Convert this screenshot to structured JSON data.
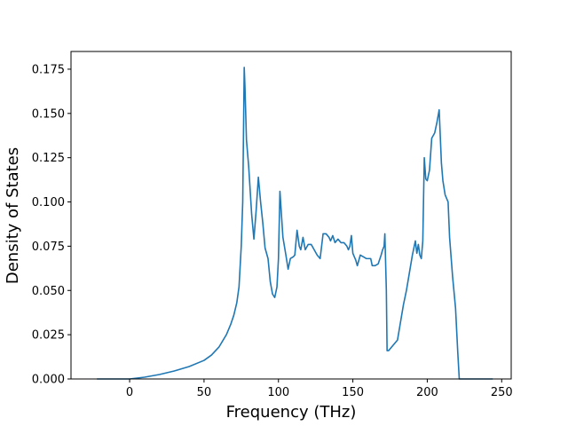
{
  "chart_data": {
    "type": "line",
    "title": "",
    "xlabel": "Frequency (THz)",
    "ylabel": "Density of States",
    "xlim": [
      -39.4,
      256.4
    ],
    "ylim": [
      0.0,
      0.185
    ],
    "grid": false,
    "legend": "none",
    "x_ticks": [
      0,
      50,
      100,
      150,
      200,
      250
    ],
    "x_tick_labels": [
      "0",
      "50",
      "100",
      "150",
      "200",
      "250"
    ],
    "y_ticks": [
      0.0,
      0.025,
      0.05,
      0.075,
      0.1,
      0.125,
      0.15,
      0.175
    ],
    "y_tick_labels": [
      "0.000",
      "0.025",
      "0.050",
      "0.075",
      "0.100",
      "0.125",
      "0.150",
      "0.175"
    ],
    "colors": {
      "line": "#1f77b4",
      "axes": "#000000",
      "background": "#ffffff"
    },
    "series": [
      {
        "x": [
          -22.0,
          0.0,
          10.0,
          20.0,
          30.0,
          40.0,
          50.0,
          55.0,
          60.0,
          65.0,
          68.0,
          70.0,
          72.0,
          73.5,
          75.0,
          76.0,
          77.0,
          77.5,
          78.5,
          80.0,
          82.0,
          83.5,
          85.0,
          86.5,
          88.0,
          89.5,
          91.0,
          93.0,
          94.5,
          96.0,
          97.5,
          99.0,
          100.0,
          101.0,
          103.0,
          105.0,
          106.5,
          108.0,
          110.0,
          111.0,
          112.5,
          114.0,
          115.0,
          116.5,
          118.0,
          120.0,
          122.0,
          124.0,
          126.0,
          128.0,
          130.0,
          132.0,
          134.0,
          135.0,
          136.5,
          138.0,
          140.0,
          142.0,
          144.0,
          146.0,
          147.0,
          148.0,
          149.0,
          150.0,
          152.0,
          153.0,
          155.0,
          157.0,
          159.0,
          160.0,
          162.0,
          163.0,
          165.0,
          167.0,
          169.0,
          170.0,
          171.0,
          171.5,
          172.5,
          173.0,
          174.0,
          176.0,
          178.0,
          180.0,
          182.0,
          184.0,
          186.0,
          188.0,
          190.0,
          192.0,
          193.0,
          194.0,
          195.0,
          196.0,
          197.0,
          198.0,
          199.0,
          200.0,
          201.5,
          203.0,
          205.0,
          206.5,
          208.0,
          209.5,
          210.5,
          212.0,
          214.0,
          215.0,
          217.0,
          219.0,
          220.5,
          221.5,
          222.0,
          230.0,
          244.0
        ],
        "y": [
          0.0,
          0.0,
          0.001,
          0.0025,
          0.0045,
          0.007,
          0.0105,
          0.0135,
          0.018,
          0.025,
          0.031,
          0.036,
          0.043,
          0.052,
          0.075,
          0.1,
          0.176,
          0.165,
          0.135,
          0.12,
          0.093,
          0.079,
          0.095,
          0.114,
          0.1,
          0.088,
          0.074,
          0.068,
          0.055,
          0.048,
          0.046,
          0.052,
          0.068,
          0.106,
          0.08,
          0.07,
          0.062,
          0.068,
          0.069,
          0.07,
          0.084,
          0.075,
          0.073,
          0.08,
          0.073,
          0.076,
          0.076,
          0.073,
          0.07,
          0.068,
          0.082,
          0.082,
          0.08,
          0.078,
          0.081,
          0.077,
          0.079,
          0.077,
          0.077,
          0.075,
          0.073,
          0.075,
          0.081,
          0.071,
          0.067,
          0.064,
          0.07,
          0.069,
          0.068,
          0.068,
          0.068,
          0.064,
          0.064,
          0.065,
          0.07,
          0.073,
          0.075,
          0.082,
          0.05,
          0.016,
          0.016,
          0.018,
          0.02,
          0.022,
          0.032,
          0.042,
          0.05,
          0.06,
          0.07,
          0.078,
          0.071,
          0.076,
          0.07,
          0.068,
          0.078,
          0.125,
          0.113,
          0.112,
          0.118,
          0.136,
          0.139,
          0.145,
          0.152,
          0.122,
          0.112,
          0.104,
          0.1,
          0.08,
          0.058,
          0.04,
          0.015,
          0.0,
          0.0,
          0.0,
          0.0
        ]
      }
    ]
  }
}
